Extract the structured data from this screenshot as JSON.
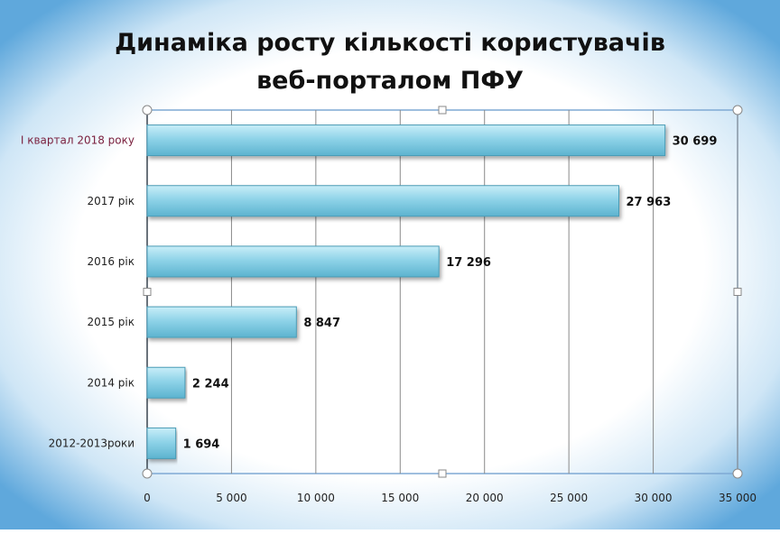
{
  "chart_data": {
    "type": "bar",
    "orientation": "horizontal",
    "title_lines": [
      "Динаміка росту кількості користувачів",
      "веб-порталом ПФУ"
    ],
    "categories": [
      "I квартал  2018 року",
      "2017 рік",
      "2016 рік",
      "2015 рік",
      "2014 рік",
      "2012-2013роки"
    ],
    "values": [
      30699,
      27963,
      17296,
      8847,
      2244,
      1694
    ],
    "value_labels": [
      "30 699",
      "27 963",
      "17 296",
      "8 847",
      "2 244",
      "1 694"
    ],
    "xlim": [
      0,
      35000
    ],
    "x_ticks": [
      0,
      5000,
      10000,
      15000,
      20000,
      25000,
      30000,
      35000
    ],
    "x_tick_labels": [
      "0",
      "5 000",
      "10 000",
      "15 000",
      "20 000",
      "25 000",
      "30 000",
      "35 000"
    ],
    "xlabel": "",
    "ylabel": "",
    "grid": "vertical",
    "legend": "none",
    "colors": {
      "bar_fill": "#8fd3e8",
      "bar_stroke": "#4a9bb5",
      "background_edge": "#5fa8dc",
      "background_center": "#ffffff",
      "gridline": "#8a8a8a",
      "plot_border": "#7fa9d4"
    }
  }
}
